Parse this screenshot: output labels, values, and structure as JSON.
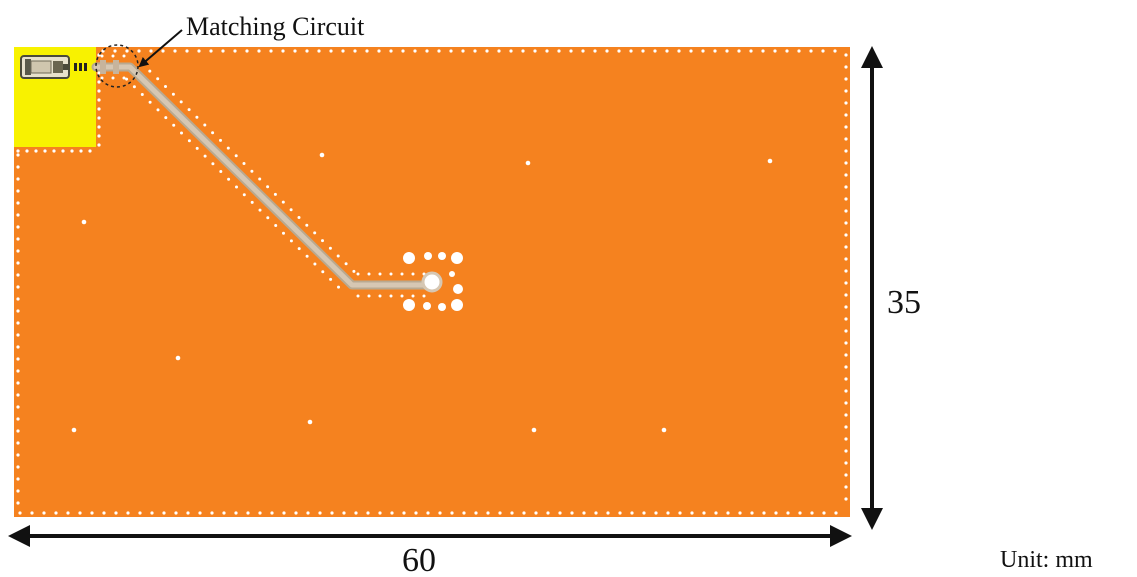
{
  "callout": {
    "label": "Matching Circuit"
  },
  "dimensions": {
    "width": "60",
    "height": "35",
    "unit": "Unit: mm"
  },
  "colors": {
    "board": "#F5821F",
    "corner_pad": "#F8F200",
    "trace": "#C7B49C",
    "via": "#FFFFFF",
    "arrow": "#111111"
  },
  "icon_names": [
    "connector-icon",
    "matching-circuit-marker",
    "dimension-arrow"
  ]
}
